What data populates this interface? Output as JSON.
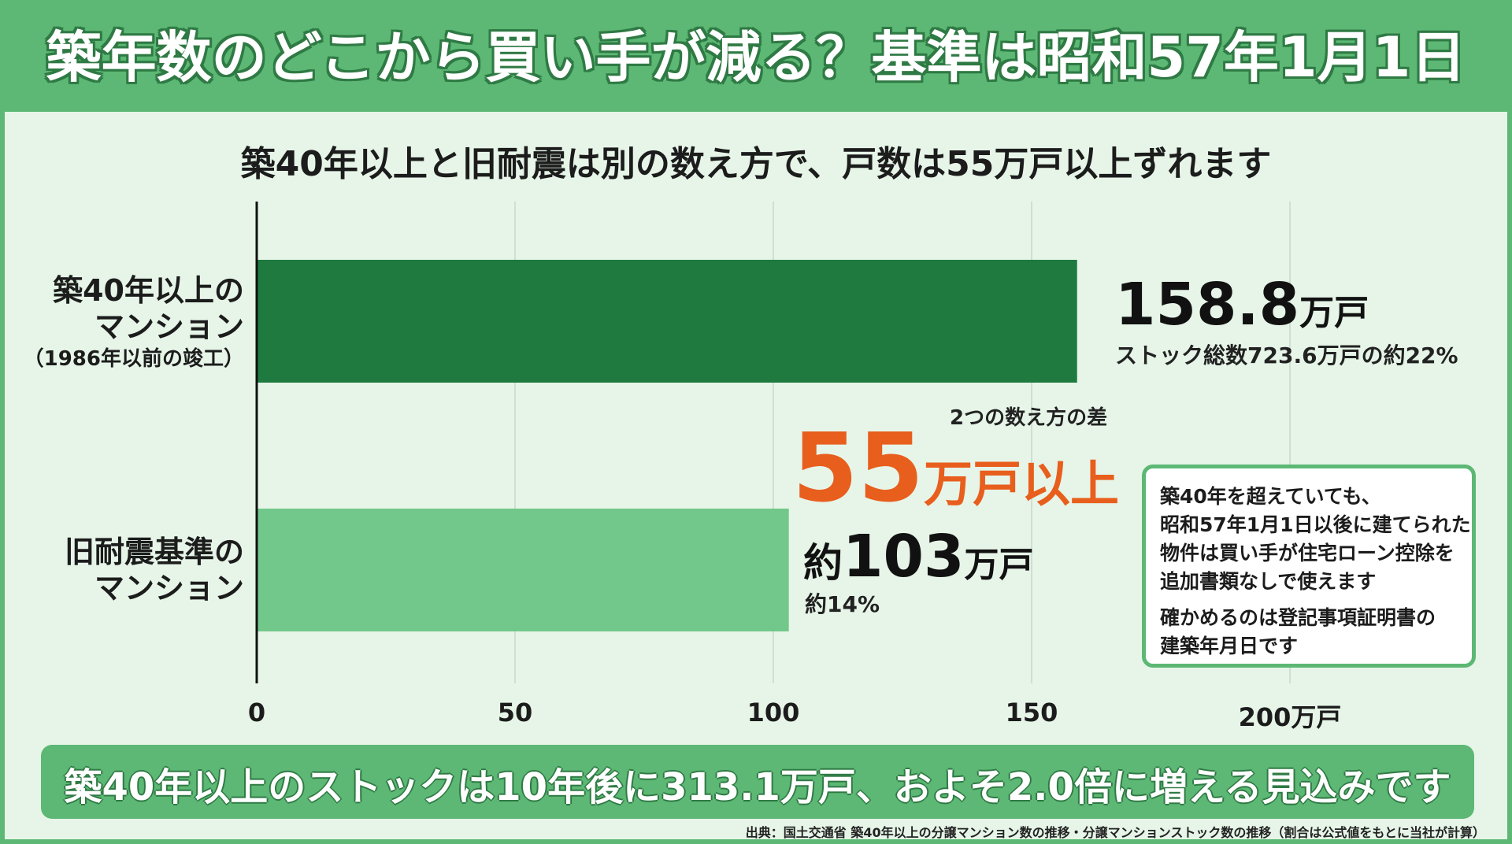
{
  "title": "築年数のどこから買い手が減る？基準は昭和57年1月1日",
  "subtitle": "築40年以上と旧耐震は別の数え方で、戸数は55万戸以上ずれます",
  "colors": {
    "header_green": "#5cb874",
    "bar_dark": "#1f7a3f",
    "bar_light": "#72c88a",
    "accent_orange": "#e85e1d",
    "background": "#e6f5e8"
  },
  "chart_data": {
    "type": "bar",
    "orientation": "horizontal",
    "title": "築40年以上と旧耐震は別の数え方で、戸数は55万戸以上ずれます",
    "categories": [
      {
        "lines": [
          "築40年以上の",
          "マンション"
        ],
        "sub": "（1986年以前の竣工）"
      },
      {
        "lines": [
          "旧耐震基準の",
          "マンション"
        ],
        "sub": ""
      }
    ],
    "values": [
      158.8,
      103
    ],
    "value_labels": [
      {
        "prefix": "",
        "number": "158.8",
        "unit": "万戸",
        "sub": "ストック総数723.6万戸の約22%"
      },
      {
        "prefix": "約",
        "number": "103",
        "unit": "万戸",
        "sub": "約14%"
      }
    ],
    "xlim": [
      0,
      200
    ],
    "x_ticks": [
      "0",
      "50",
      "100",
      "150",
      "200万戸"
    ],
    "x_tick_values": [
      0,
      50,
      100,
      150,
      200
    ],
    "grid": true,
    "annotation": {
      "caption": "2つの数え方の差",
      "number": "55",
      "unit": "万戸以上"
    }
  },
  "note": {
    "paragraph1": [
      "築40年を超えていても、",
      "昭和57年1月1日以後に建てられた",
      "物件は買い手が住宅ローン控除を",
      "追加書類なしで使えます"
    ],
    "paragraph2": [
      "確かめるのは登記事項証明書の",
      "建築年月日です"
    ]
  },
  "banner": "築40年以上のストックは10年後に313.1万戸、およそ2.0倍に増える見込みです",
  "source": "出典：国土交通省 築40年以上の分譲マンション数の推移・分譲マンションストック数の推移（割合は公式値をもとに当社が計算）"
}
